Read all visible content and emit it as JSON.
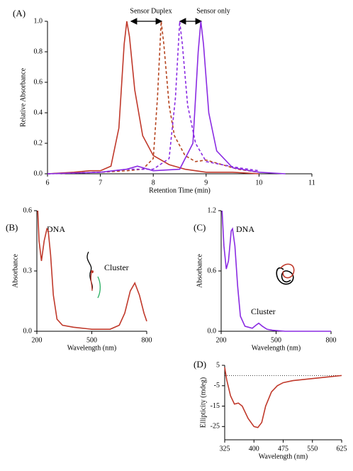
{
  "chart_data": [
    {
      "type": "line",
      "panel_label": "(A)",
      "xlabel": "Retention Time (min)",
      "ylabel": "Relative Absorbance",
      "annotations": [
        "Sensor Duplex",
        "Sensor only"
      ],
      "xlim": [
        6,
        11
      ],
      "xticks": [
        6,
        7,
        8,
        9,
        10,
        11
      ],
      "ylim": [
        0,
        1
      ],
      "yticks": [
        {
          "value": 0,
          "label": "0.0"
        },
        0.2,
        0.4,
        0.6,
        0.8,
        {
          "value": 1,
          "label": "1.0"
        }
      ],
      "series": [
        {
          "color": "#c0392b",
          "style": "solid",
          "x": [
            6.0,
            6.5,
            6.8,
            7.0,
            7.2,
            7.35,
            7.45,
            7.5,
            7.55,
            7.65,
            7.8,
            8.0,
            8.3,
            8.6,
            9.0,
            9.5,
            10.0
          ],
          "values": [
            0.0,
            0.01,
            0.02,
            0.02,
            0.05,
            0.3,
            0.85,
            1.0,
            0.9,
            0.55,
            0.25,
            0.12,
            0.06,
            0.03,
            0.01,
            0.01,
            0.0
          ]
        },
        {
          "color": "#b5441f",
          "style": "dashed",
          "x": [
            6.0,
            7.0,
            7.5,
            7.8,
            8.0,
            8.08,
            8.15,
            8.2,
            8.3,
            8.4,
            8.6,
            8.8,
            9.0,
            9.3,
            9.6,
            10.0
          ],
          "values": [
            0.0,
            0.01,
            0.02,
            0.03,
            0.1,
            0.5,
            1.0,
            0.85,
            0.45,
            0.25,
            0.12,
            0.08,
            0.09,
            0.06,
            0.03,
            0.01
          ]
        },
        {
          "color": "#8a2be2",
          "style": "dashed",
          "x": [
            6.0,
            7.0,
            7.5,
            8.0,
            8.3,
            8.42,
            8.5,
            8.55,
            8.65,
            8.8,
            9.0,
            9.3,
            9.6,
            10.0
          ],
          "values": [
            0.0,
            0.01,
            0.03,
            0.03,
            0.1,
            0.5,
            1.0,
            0.85,
            0.45,
            0.2,
            0.08,
            0.06,
            0.04,
            0.02
          ]
        },
        {
          "color": "#8a2be2",
          "style": "solid",
          "x": [
            6.0,
            7.0,
            7.5,
            7.7,
            8.0,
            8.5,
            8.75,
            8.85,
            8.9,
            8.95,
            9.05,
            9.2,
            9.5,
            10.0,
            10.5
          ],
          "values": [
            0.0,
            0.01,
            0.03,
            0.05,
            0.02,
            0.03,
            0.2,
            0.8,
            1.0,
            0.85,
            0.4,
            0.15,
            0.04,
            0.01,
            0.0
          ]
        }
      ]
    },
    {
      "type": "line",
      "panel_label": "(B)",
      "xlabel": "Wavelength (nm)",
      "ylabel": "Absorbance",
      "annotations": [
        "DNA",
        "Cluster"
      ],
      "xlim": [
        200,
        800
      ],
      "xticks": [
        200,
        500,
        800
      ],
      "ylim": [
        0,
        0.6
      ],
      "yticks": [
        {
          "value": 0,
          "label": "0.0"
        },
        0.3,
        0.6
      ],
      "series": [
        {
          "color": "#c0392b",
          "style": "solid",
          "x": [
            205,
            212,
            225,
            240,
            255,
            262,
            275,
            290,
            310,
            340,
            400,
            500,
            600,
            650,
            680,
            710,
            735,
            760,
            785,
            800
          ],
          "values": [
            0.6,
            0.45,
            0.35,
            0.45,
            0.51,
            0.5,
            0.38,
            0.18,
            0.06,
            0.03,
            0.02,
            0.01,
            0.01,
            0.03,
            0.09,
            0.2,
            0.24,
            0.18,
            0.09,
            0.05
          ]
        }
      ]
    },
    {
      "type": "line",
      "panel_label": "(C)",
      "xlabel": "Wavelength (nm)",
      "ylabel": "Absorbance",
      "annotations": [
        "DNA",
        "Cluster"
      ],
      "xlim": [
        200,
        800
      ],
      "xticks": [
        200,
        500,
        800
      ],
      "ylim": [
        0,
        1.2
      ],
      "yticks": [
        {
          "value": 0,
          "label": "0.0"
        },
        0.6,
        1.2
      ],
      "series": [
        {
          "color": "#8a2be2",
          "style": "solid",
          "x": [
            205,
            215,
            228,
            240,
            255,
            262,
            275,
            290,
            305,
            330,
            370,
            390,
            405,
            425,
            450,
            480,
            550,
            800
          ],
          "values": [
            1.2,
            0.85,
            0.62,
            0.7,
            1.0,
            1.02,
            0.85,
            0.45,
            0.15,
            0.05,
            0.03,
            0.06,
            0.08,
            0.05,
            0.02,
            0.01,
            0.0,
            0.0
          ]
        }
      ]
    },
    {
      "type": "line",
      "panel_label": "(D)",
      "xlabel": "Wavelength (nm)",
      "ylabel": "Ellipticity (mdeg)",
      "xlim": [
        325,
        625
      ],
      "xticks": [
        325,
        400,
        475,
        550,
        625
      ],
      "ylim": [
        -31.5,
        5
      ],
      "yticks": [
        5,
        -5,
        -15,
        -25
      ],
      "reference_line": 0,
      "series": [
        {
          "color": "#c0392b",
          "style": "solid",
          "x": [
            325,
            330,
            340,
            350,
            360,
            370,
            385,
            400,
            410,
            420,
            430,
            445,
            460,
            475,
            500,
            550,
            600,
            625
          ],
          "values": [
            4,
            -2,
            -10,
            -14,
            -13.5,
            -15,
            -21,
            -25,
            -25.5,
            -23,
            -15,
            -8,
            -5,
            -3.5,
            -2.5,
            -1.5,
            -0.5,
            0
          ]
        }
      ]
    }
  ]
}
